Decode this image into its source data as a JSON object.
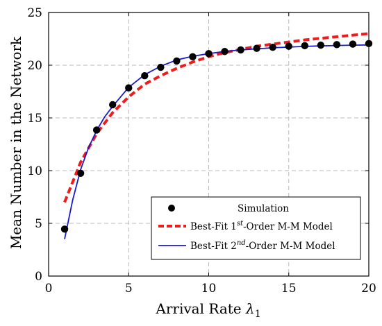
{
  "chart_data": {
    "type": "line",
    "xlabel_main": "Arrival Rate ",
    "xlabel_symbol": "λ",
    "xlabel_subscript": "1",
    "ylabel": "Mean Number in the Network",
    "xlim": [
      0,
      20
    ],
    "ylim": [
      0,
      25
    ],
    "x_ticks": [
      "0",
      "5",
      "10",
      "15",
      "20"
    ],
    "y_ticks": [
      "0",
      "5",
      "10",
      "15",
      "20",
      "25"
    ],
    "grid": true,
    "legend_position": "bottom-right",
    "series": [
      {
        "name": "Simulation",
        "kind": "markers",
        "color": "#000000",
        "x": [
          1,
          2,
          3,
          4,
          5,
          6,
          7,
          8,
          9,
          10,
          11,
          12,
          13,
          14,
          15,
          16,
          17,
          18,
          19,
          20
        ],
        "y": [
          4.45,
          9.75,
          13.85,
          16.25,
          17.85,
          19.0,
          19.8,
          20.4,
          20.8,
          21.1,
          21.3,
          21.45,
          21.6,
          21.7,
          21.8,
          21.85,
          21.9,
          21.95,
          22.0,
          22.05
        ]
      },
      {
        "name": "Best-Fit 1st-Order M-M Model",
        "name_parts": [
          "Best-Fit 1",
          "st",
          "-Order M-M Model"
        ],
        "kind": "dashed-line",
        "color": "#ee1c1c",
        "x": [
          1,
          2,
          3,
          4,
          5,
          6,
          7,
          8,
          9,
          10,
          11,
          12,
          13,
          14,
          15,
          16,
          17,
          18,
          19,
          20
        ],
        "y": [
          7.0,
          10.8,
          13.5,
          15.5,
          17.0,
          18.2,
          19.0,
          19.7,
          20.3,
          20.8,
          21.2,
          21.5,
          21.8,
          22.0,
          22.2,
          22.4,
          22.55,
          22.7,
          22.85,
          23.0
        ]
      },
      {
        "name": "Best-Fit 2nd-Order M-M Model",
        "name_parts": [
          "Best-Fit 2",
          "nd",
          "-Order M-M Model"
        ],
        "kind": "solid-line",
        "color": "#1a1acc",
        "x": [
          1,
          1.5,
          2,
          2.5,
          3,
          3.5,
          4,
          5,
          6,
          7,
          8,
          9,
          10,
          11,
          12,
          13,
          14,
          15,
          16,
          17,
          18,
          19,
          20
        ],
        "y": [
          3.5,
          7.2,
          10.1,
          12.2,
          13.8,
          15.1,
          16.1,
          17.9,
          19.1,
          19.9,
          20.5,
          20.85,
          21.1,
          21.3,
          21.45,
          21.55,
          21.65,
          21.72,
          21.78,
          21.83,
          21.87,
          21.9,
          21.92
        ]
      }
    ]
  }
}
